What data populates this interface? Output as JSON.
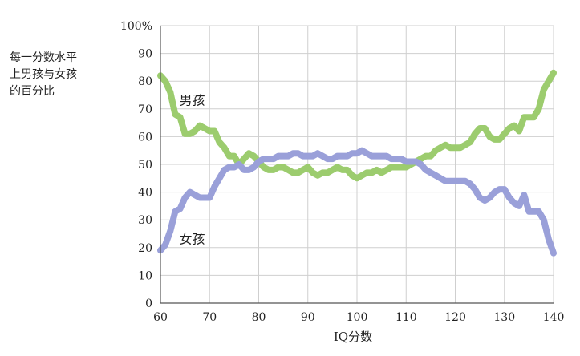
{
  "chart_data": {
    "type": "line",
    "title": "",
    "ylabel_lines": [
      "每一分数水平",
      "上男孩与女孩",
      "的百分比"
    ],
    "xlabel": "IQ分数",
    "xlim": [
      60,
      140
    ],
    "ylim": [
      0,
      100
    ],
    "x_ticks": [
      60,
      70,
      80,
      90,
      100,
      110,
      120,
      130,
      140
    ],
    "y_ticks": [
      0,
      10,
      20,
      30,
      40,
      50,
      60,
      70,
      80,
      90,
      100
    ],
    "y_top_tick_label": "100%",
    "grid": true,
    "series": [
      {
        "name": "男孩",
        "color": "#9ccc6e",
        "x": [
          60,
          61,
          62,
          63,
          64,
          65,
          66,
          67,
          68,
          69,
          70,
          71,
          72,
          73,
          74,
          75,
          76,
          77,
          78,
          79,
          80,
          81,
          82,
          83,
          84,
          85,
          86,
          87,
          88,
          89,
          90,
          91,
          92,
          93,
          94,
          95,
          96,
          97,
          98,
          99,
          100,
          101,
          102,
          103,
          104,
          105,
          106,
          107,
          108,
          109,
          110,
          111,
          112,
          113,
          114,
          115,
          116,
          117,
          118,
          119,
          120,
          121,
          122,
          123,
          124,
          125,
          126,
          127,
          128,
          129,
          130,
          131,
          132,
          133,
          134,
          135,
          136,
          137,
          138,
          139,
          140
        ],
        "y": [
          82,
          80,
          76,
          68,
          67,
          61,
          61,
          62,
          64,
          63,
          62,
          62,
          58,
          56,
          53,
          53,
          50,
          52,
          54,
          53,
          51,
          49,
          48,
          48,
          49,
          49,
          48,
          47,
          47,
          48,
          49,
          47,
          46,
          47,
          47,
          48,
          49,
          48,
          48,
          46,
          45,
          46,
          47,
          47,
          48,
          47,
          48,
          49,
          49,
          49,
          49,
          50,
          51,
          52,
          53,
          53,
          55,
          56,
          57,
          56,
          56,
          56,
          57,
          58,
          61,
          63,
          63,
          60,
          59,
          59,
          61,
          63,
          64,
          62,
          67,
          67,
          67,
          70,
          77,
          80,
          83
        ]
      },
      {
        "name": "女孩",
        "color": "#9aa0d9",
        "x": [
          60,
          61,
          62,
          63,
          64,
          65,
          66,
          67,
          68,
          69,
          70,
          71,
          72,
          73,
          74,
          75,
          76,
          77,
          78,
          79,
          80,
          81,
          82,
          83,
          84,
          85,
          86,
          87,
          88,
          89,
          90,
          91,
          92,
          93,
          94,
          95,
          96,
          97,
          98,
          99,
          100,
          101,
          102,
          103,
          104,
          105,
          106,
          107,
          108,
          109,
          110,
          111,
          112,
          113,
          114,
          115,
          116,
          117,
          118,
          119,
          120,
          121,
          122,
          123,
          124,
          125,
          126,
          127,
          128,
          129,
          130,
          131,
          132,
          133,
          134,
          135,
          136,
          137,
          138,
          139,
          140
        ],
        "y": [
          19,
          21,
          26,
          33,
          34,
          38,
          40,
          39,
          38,
          38,
          38,
          42,
          45,
          48,
          49,
          49,
          50,
          48,
          48,
          49,
          51,
          52,
          52,
          52,
          53,
          53,
          53,
          54,
          54,
          53,
          53,
          53,
          54,
          53,
          52,
          52,
          53,
          53,
          53,
          54,
          54,
          55,
          54,
          53,
          53,
          53,
          53,
          52,
          52,
          52,
          51,
          51,
          51,
          50,
          48,
          47,
          46,
          45,
          44,
          44,
          44,
          44,
          44,
          43,
          41,
          38,
          37,
          38,
          40,
          41,
          41,
          38,
          36,
          35,
          39,
          33,
          33,
          33,
          30,
          23,
          18
        ]
      }
    ],
    "annotations": [
      {
        "text": "男孩",
        "x": 64,
        "y": 73
      },
      {
        "text": "女孩",
        "x": 64,
        "y": 23
      }
    ]
  }
}
